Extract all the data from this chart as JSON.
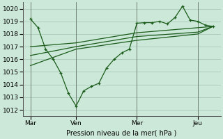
{
  "background_color": "#cce8d8",
  "grid_color": "#aac8b8",
  "line_color": "#1a5c1a",
  "title": "Pression niveau de la mer( hPa )",
  "ylim": [
    1011.5,
    1020.5
  ],
  "yticks": [
    1012,
    1013,
    1014,
    1015,
    1016,
    1017,
    1018,
    1019,
    1020
  ],
  "xtick_labels": [
    "Mar",
    "Ven",
    "Mer",
    "Jeu"
  ],
  "xtick_positions": [
    1,
    4,
    8,
    12
  ],
  "vline_positions": [
    1,
    4,
    8,
    12
  ],
  "xlim": [
    0.5,
    13.5
  ],
  "main_series_x": [
    1,
    1.5,
    2,
    2.5,
    3,
    3.5,
    4,
    4.5,
    5,
    5.5,
    6,
    6.5,
    7,
    7.5,
    8,
    8.5,
    9,
    9.5,
    10,
    10.5,
    11,
    11.5,
    12,
    12.5,
    13
  ],
  "main_series_y": [
    1019.2,
    1018.5,
    1016.8,
    1016.0,
    1014.9,
    1013.3,
    1012.3,
    1013.5,
    1013.85,
    1014.1,
    1015.3,
    1016.0,
    1016.5,
    1016.8,
    1018.85,
    1018.9,
    1018.9,
    1019.0,
    1018.8,
    1019.3,
    1020.2,
    1019.1,
    1019.0,
    1018.7,
    1018.6
  ],
  "trend_lines": [
    {
      "x": [
        1,
        4,
        8,
        12,
        13
      ],
      "y": [
        1017.0,
        1017.3,
        1018.1,
        1018.5,
        1018.6
      ]
    },
    {
      "x": [
        1,
        4,
        8,
        12,
        13
      ],
      "y": [
        1016.3,
        1017.0,
        1017.8,
        1018.15,
        1018.6
      ]
    },
    {
      "x": [
        1,
        4,
        8,
        12,
        13
      ],
      "y": [
        1015.5,
        1016.8,
        1017.5,
        1018.0,
        1018.6
      ]
    }
  ]
}
